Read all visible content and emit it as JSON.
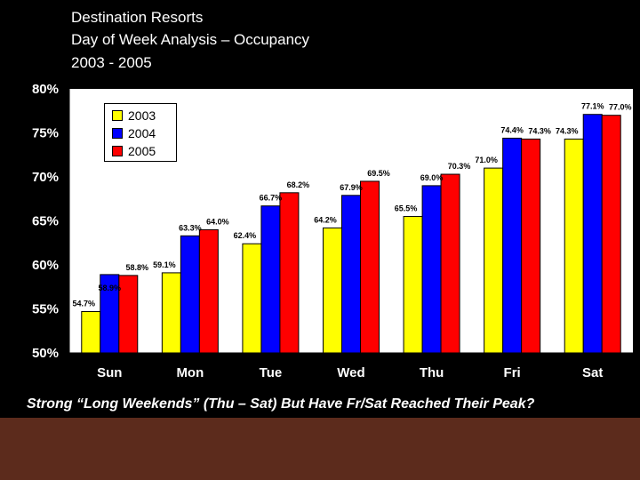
{
  "title": {
    "line1": "Destination Resorts",
    "line2": "Day of Week Analysis – Occupancy",
    "line3": "2003 - 2005"
  },
  "caption": "Strong “Long Weekends” (Thu – Sat) But Have Fr/Sat Reached Their Peak?",
  "colors": {
    "background": "#000000",
    "footer": "#5c2b1c",
    "axis_text": "#ffffff",
    "plot_bg": "#ffffff"
  },
  "chart_data": {
    "type": "bar",
    "categories": [
      "Sun",
      "Mon",
      "Tue",
      "Wed",
      "Thu",
      "Fri",
      "Sat"
    ],
    "series": [
      {
        "name": "2003",
        "color": "#ffff00",
        "values": [
          54.7,
          59.1,
          62.4,
          64.2,
          65.5,
          71.0,
          74.3
        ]
      },
      {
        "name": "2004",
        "color": "#0000ff",
        "values": [
          58.9,
          63.3,
          66.7,
          67.9,
          69.0,
          74.4,
          77.1
        ]
      },
      {
        "name": "2005",
        "color": "#ff0000",
        "values": [
          58.8,
          64.0,
          68.2,
          69.5,
          70.3,
          74.3,
          77.0
        ]
      }
    ],
    "labels": [
      [
        "54.7%",
        "58.9%",
        "58.8%"
      ],
      [
        "59.1%",
        "63.3%",
        "64.0%"
      ],
      [
        "62.4%",
        "66.7%",
        "68.2%"
      ],
      [
        "64.2%",
        "67.9%",
        "69.5%"
      ],
      [
        "65.5%",
        "69.0%",
        "70.3%"
      ],
      [
        "71.0%",
        "74.4%",
        "74.3%"
      ],
      [
        "74.3%",
        "77.1%",
        "77.0%"
      ]
    ],
    "ylim": [
      50,
      80
    ],
    "yticks": [
      "50%",
      "55%",
      "60%",
      "65%",
      "70%",
      "75%",
      "80%"
    ],
    "legend": {
      "position": "top-left",
      "entries": [
        "2003",
        "2004",
        "2005"
      ]
    },
    "grid": false
  }
}
